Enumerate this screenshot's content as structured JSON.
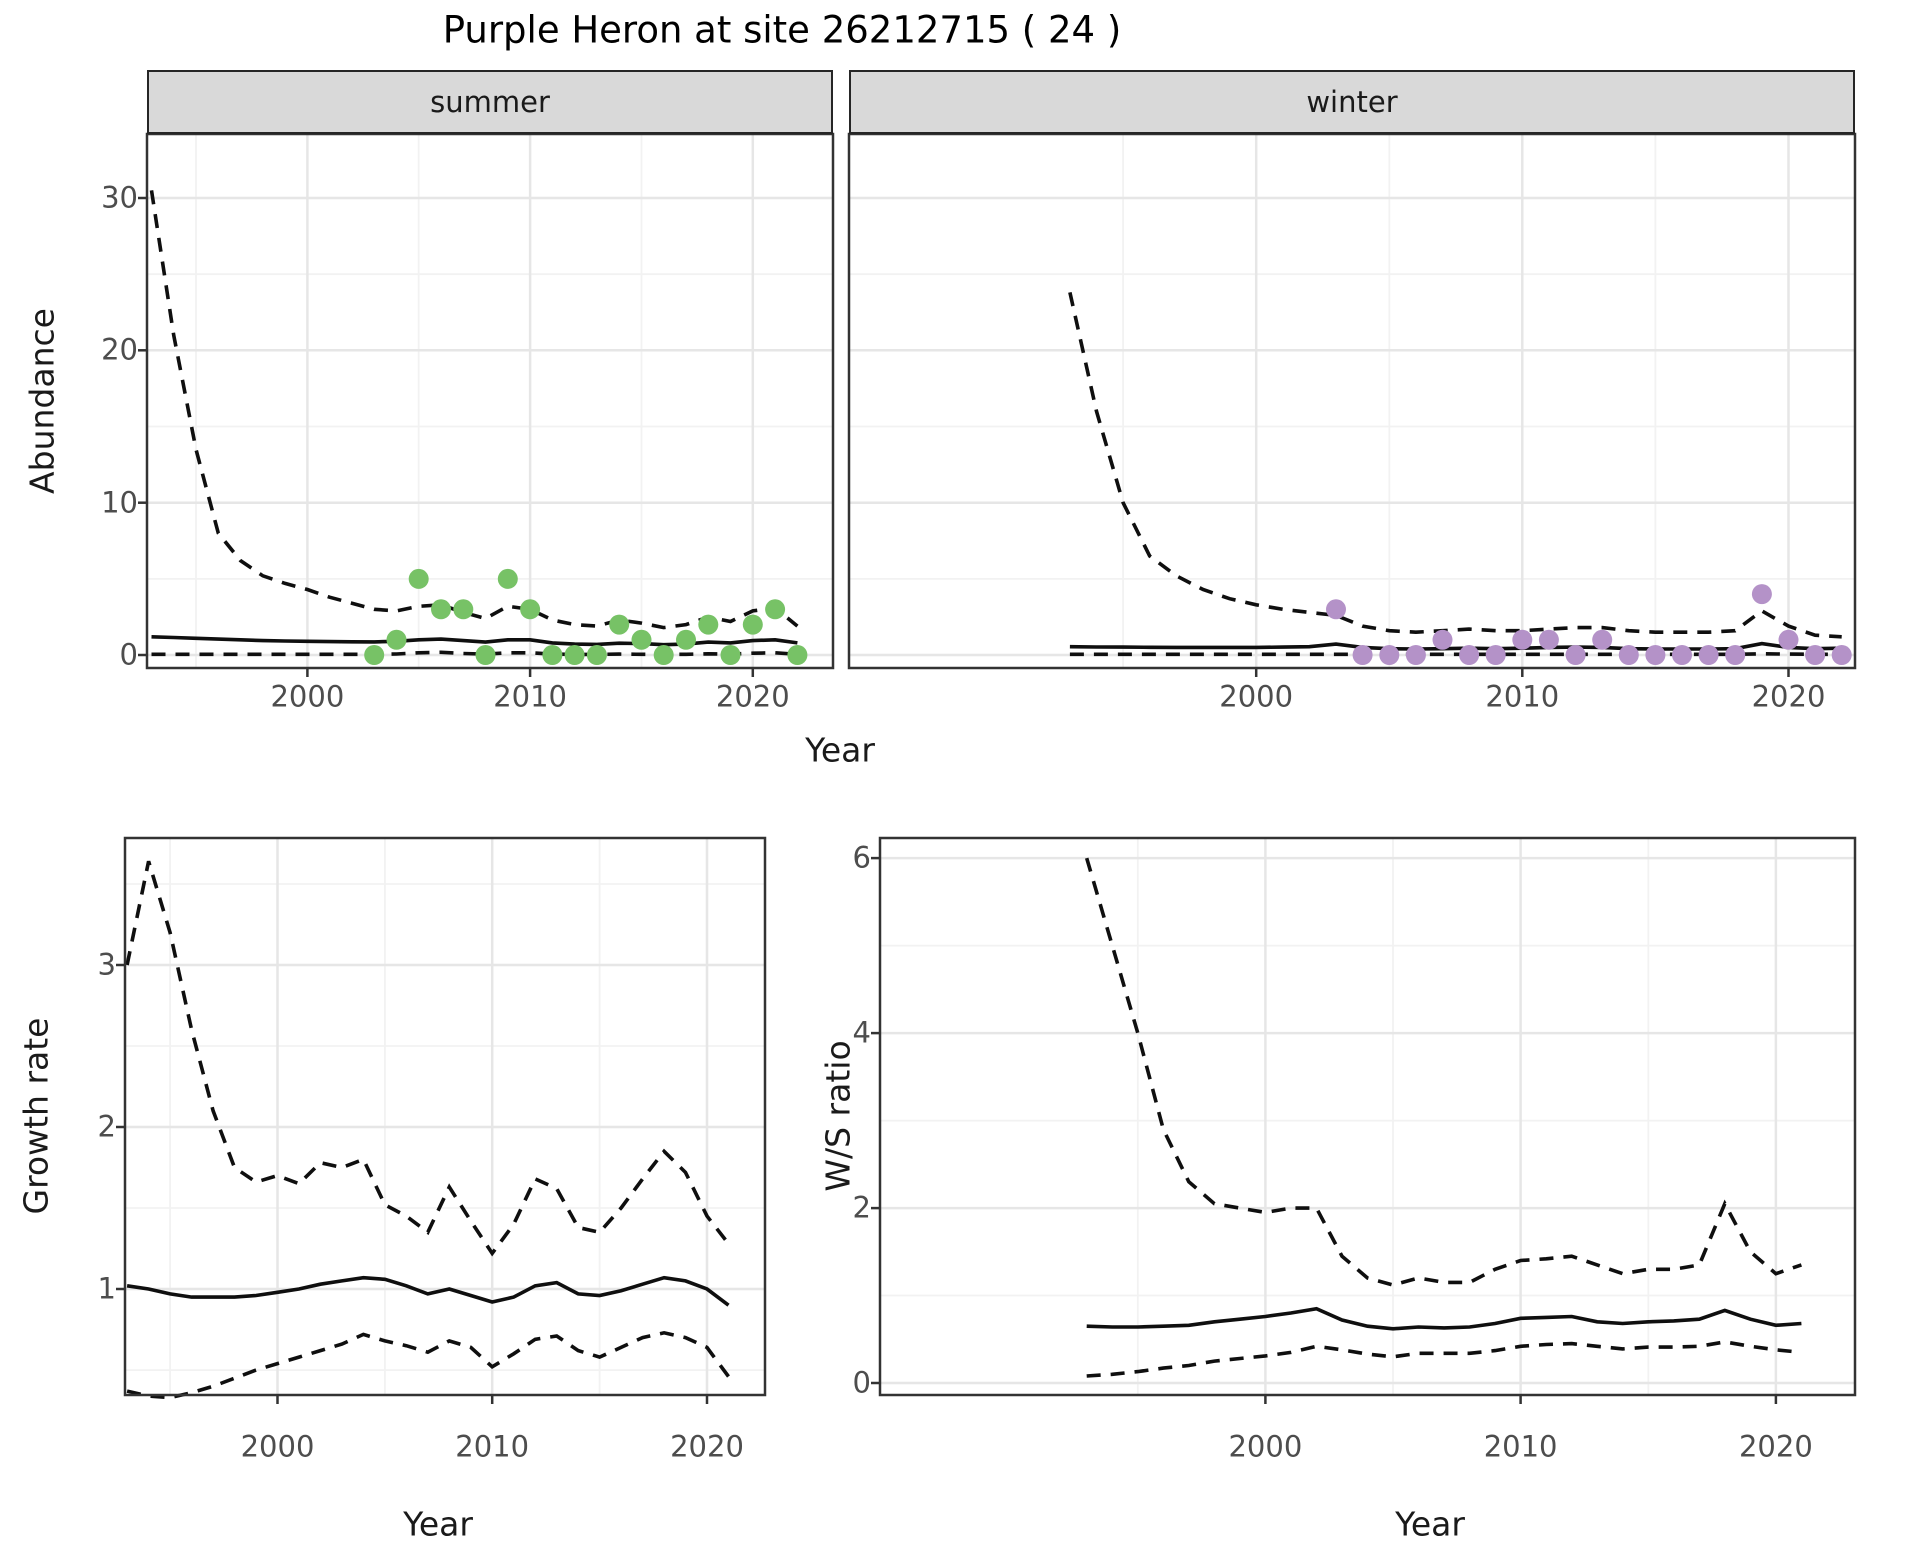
{
  "title": "Purple Heron at site 26212715 ( 24 )",
  "labels": {
    "abundance": "Abundance",
    "growth": "Growth rate",
    "ws": "W/S ratio",
    "year_top": "Year",
    "year_bottom_left": "Year",
    "year_bottom_right": "Year"
  },
  "facets": {
    "summer": "summer",
    "winter": "winter"
  },
  "colors": {
    "summer_point": "#77c266",
    "winter_point": "#b492c8",
    "line": "#0f0f0f",
    "grid_major": "#e6e6e6",
    "grid_minor": "#f2f2f2",
    "strip_bg": "#d9d9d9",
    "panel_border": "#333333",
    "tick_text": "#4d4d4d"
  },
  "chart_data": [
    {
      "type": "line",
      "panel": "abundance_summer",
      "facet_label": "summer",
      "title": "Purple Heron at site 26212715 ( 24 )",
      "xlabel": "Year",
      "ylabel": "Abundance",
      "x_ticks": [
        2000,
        2010,
        2020
      ],
      "y_ticks": [
        0,
        10,
        20,
        30
      ],
      "xlim": [
        1992.8,
        2023.6
      ],
      "ylim": [
        -0.85,
        34.2
      ],
      "grid": true,
      "legend": "none",
      "series": [
        {
          "name": "upper_95CI",
          "style": "dashed",
          "x": [
            1993,
            1994,
            1995,
            1996,
            1997,
            1998,
            1999,
            2000,
            2001,
            2002,
            2003,
            2004,
            2005,
            2006,
            2007,
            2008,
            2009,
            2010,
            2011,
            2012,
            2013,
            2014,
            2015,
            2016,
            2017,
            2018,
            2019,
            2020,
            2021,
            2022
          ],
          "y": [
            30.5,
            21,
            13.5,
            8,
            6.2,
            5.2,
            4.7,
            4.3,
            3.8,
            3.4,
            3.0,
            2.9,
            3.2,
            3.3,
            2.8,
            2.4,
            3.2,
            3.0,
            2.3,
            2.0,
            1.9,
            2.3,
            2.1,
            1.8,
            2.0,
            2.5,
            2.2,
            2.9,
            3.1,
            1.9
          ]
        },
        {
          "name": "mean",
          "style": "solid",
          "x": [
            1993,
            1994,
            1995,
            1996,
            1997,
            1998,
            1999,
            2000,
            2001,
            2002,
            2003,
            2004,
            2005,
            2006,
            2007,
            2008,
            2009,
            2010,
            2011,
            2012,
            2013,
            2014,
            2015,
            2016,
            2017,
            2018,
            2019,
            2020,
            2021,
            2022
          ],
          "y": [
            1.2,
            1.15,
            1.1,
            1.05,
            1.0,
            0.95,
            0.92,
            0.9,
            0.88,
            0.87,
            0.86,
            0.9,
            1.0,
            1.05,
            0.95,
            0.85,
            1.0,
            1.0,
            0.8,
            0.72,
            0.7,
            0.78,
            0.75,
            0.68,
            0.72,
            0.85,
            0.8,
            0.95,
            1.0,
            0.8
          ]
        },
        {
          "name": "lower_95CI",
          "style": "dashed",
          "x": [
            1993,
            1994,
            1995,
            1996,
            1997,
            1998,
            1999,
            2000,
            2001,
            2002,
            2003,
            2004,
            2005,
            2006,
            2007,
            2008,
            2009,
            2010,
            2011,
            2012,
            2013,
            2014,
            2015,
            2016,
            2017,
            2018,
            2019,
            2020,
            2021,
            2022
          ],
          "y": [
            0.05,
            0.05,
            0.05,
            0.05,
            0.05,
            0.05,
            0.05,
            0.05,
            0.05,
            0.05,
            0.05,
            0.07,
            0.15,
            0.18,
            0.1,
            0.06,
            0.15,
            0.15,
            0.06,
            0.04,
            0.04,
            0.06,
            0.05,
            0.04,
            0.05,
            0.08,
            0.06,
            0.12,
            0.15,
            0.05
          ]
        },
        {
          "name": "observed_counts",
          "style": "points",
          "color": "#77c266",
          "x": [
            2003,
            2004,
            2005,
            2006,
            2007,
            2008,
            2009,
            2010,
            2011,
            2012,
            2013,
            2014,
            2015,
            2016,
            2017,
            2018,
            2019,
            2020,
            2021,
            2022
          ],
          "y": [
            0,
            1,
            5,
            3,
            3,
            0,
            5,
            3,
            0,
            0,
            0,
            2,
            1,
            0,
            1,
            2,
            0,
            2,
            3,
            0
          ]
        }
      ]
    },
    {
      "type": "line",
      "panel": "abundance_winter",
      "facet_label": "winter",
      "xlabel": "Year",
      "ylabel": "Abundance",
      "x_ticks": [
        2000,
        2010,
        2020
      ],
      "y_ticks": [
        0,
        10,
        20,
        30
      ],
      "xlim": [
        1984.7,
        2022.5
      ],
      "ylim": [
        -0.85,
        34.2
      ],
      "grid": true,
      "legend": "none",
      "series": [
        {
          "name": "upper_95CI",
          "style": "dashed",
          "x": [
            1993,
            1994,
            1995,
            1996,
            1997,
            1998,
            1999,
            2000,
            2001,
            2002,
            2003,
            2004,
            2005,
            2006,
            2007,
            2008,
            2009,
            2010,
            2011,
            2012,
            2013,
            2014,
            2015,
            2016,
            2017,
            2018,
            2019,
            2020,
            2021,
            2022
          ],
          "y": [
            23.8,
            16,
            10,
            6.5,
            5.2,
            4.3,
            3.7,
            3.3,
            3.0,
            2.8,
            2.6,
            1.9,
            1.6,
            1.5,
            1.6,
            1.7,
            1.6,
            1.6,
            1.7,
            1.8,
            1.8,
            1.6,
            1.5,
            1.5,
            1.5,
            1.6,
            2.9,
            1.9,
            1.3,
            1.2
          ]
        },
        {
          "name": "mean",
          "style": "solid",
          "x": [
            1993,
            1994,
            1995,
            1996,
            1997,
            1998,
            1999,
            2000,
            2001,
            2002,
            2003,
            2004,
            2005,
            2006,
            2007,
            2008,
            2009,
            2010,
            2011,
            2012,
            2013,
            2014,
            2015,
            2016,
            2017,
            2018,
            2019,
            2020,
            2021,
            2022
          ],
          "y": [
            0.55,
            0.53,
            0.52,
            0.51,
            0.5,
            0.5,
            0.5,
            0.5,
            0.52,
            0.55,
            0.72,
            0.5,
            0.42,
            0.4,
            0.42,
            0.45,
            0.42,
            0.45,
            0.5,
            0.52,
            0.5,
            0.42,
            0.4,
            0.4,
            0.4,
            0.42,
            0.75,
            0.5,
            0.42,
            0.45
          ]
        },
        {
          "name": "lower_95CI",
          "style": "dashed",
          "x": [
            1993,
            1994,
            1995,
            1996,
            1997,
            1998,
            1999,
            2000,
            2001,
            2002,
            2003,
            2004,
            2005,
            2006,
            2007,
            2008,
            2009,
            2010,
            2011,
            2012,
            2013,
            2014,
            2015,
            2016,
            2017,
            2018,
            2019,
            2020,
            2021,
            2022
          ],
          "y": [
            0.05,
            0.05,
            0.05,
            0.05,
            0.05,
            0.05,
            0.05,
            0.05,
            0.05,
            0.05,
            0.05,
            0.05,
            0.05,
            0.05,
            0.05,
            0.05,
            0.05,
            0.05,
            0.05,
            0.05,
            0.05,
            0.05,
            0.05,
            0.05,
            0.05,
            0.05,
            0.08,
            0.06,
            0.05,
            0.05
          ]
        },
        {
          "name": "observed_counts",
          "style": "points",
          "color": "#b492c8",
          "x": [
            2003,
            2004,
            2005,
            2006,
            2007,
            2008,
            2009,
            2010,
            2011,
            2012,
            2013,
            2014,
            2015,
            2016,
            2017,
            2018,
            2019,
            2020,
            2021,
            2022
          ],
          "y": [
            3,
            0,
            0,
            0,
            1,
            0,
            0,
            1,
            1,
            0,
            1,
            0,
            0,
            0,
            0,
            0,
            4,
            1,
            0,
            0
          ]
        }
      ]
    },
    {
      "type": "line",
      "panel": "growth_rate",
      "xlabel": "Year",
      "ylabel": "Growth rate",
      "x_ticks": [
        2000,
        2010,
        2020
      ],
      "y_ticks": [
        1,
        2,
        3
      ],
      "xlim": [
        1992.9,
        2022.7
      ],
      "ylim": [
        0.346,
        3.784
      ],
      "grid": true,
      "legend": "none",
      "series": [
        {
          "name": "upper_95CI",
          "style": "dashed",
          "x": [
            1993,
            1994,
            1995,
            1996,
            1997,
            1998,
            1999,
            2000,
            2001,
            2002,
            2003,
            2004,
            2005,
            2006,
            2007,
            2008,
            2009,
            2010,
            2011,
            2012,
            2013,
            2014,
            2015,
            2016,
            2017,
            2018,
            2019,
            2020,
            2021
          ],
          "y": [
            3.0,
            3.64,
            3.2,
            2.6,
            2.1,
            1.75,
            1.66,
            1.7,
            1.65,
            1.78,
            1.75,
            1.8,
            1.52,
            1.45,
            1.35,
            1.63,
            1.42,
            1.22,
            1.4,
            1.68,
            1.62,
            1.38,
            1.35,
            1.5,
            1.68,
            1.85,
            1.72,
            1.45,
            1.28
          ]
        },
        {
          "name": "mean",
          "style": "solid",
          "x": [
            1993,
            1994,
            1995,
            1996,
            1997,
            1998,
            1999,
            2000,
            2001,
            2002,
            2003,
            2004,
            2005,
            2006,
            2007,
            2008,
            2009,
            2010,
            2011,
            2012,
            2013,
            2014,
            2015,
            2016,
            2017,
            2018,
            2019,
            2020,
            2021
          ],
          "y": [
            1.02,
            1.0,
            0.97,
            0.95,
            0.95,
            0.95,
            0.96,
            0.98,
            1.0,
            1.03,
            1.05,
            1.07,
            1.06,
            1.02,
            0.97,
            1.0,
            0.96,
            0.92,
            0.95,
            1.02,
            1.04,
            0.97,
            0.96,
            0.99,
            1.03,
            1.07,
            1.05,
            1.0,
            0.9
          ]
        },
        {
          "name": "lower_95CI",
          "style": "dashed",
          "x": [
            1993,
            1994,
            1995,
            1996,
            1997,
            1998,
            1999,
            2000,
            2001,
            2002,
            2003,
            2004,
            2005,
            2006,
            2007,
            2008,
            2009,
            2010,
            2011,
            2012,
            2013,
            2014,
            2015,
            2016,
            2017,
            2018,
            2019,
            2020,
            2021
          ],
          "y": [
            0.37,
            0.34,
            0.33,
            0.36,
            0.4,
            0.45,
            0.5,
            0.54,
            0.58,
            0.62,
            0.66,
            0.72,
            0.68,
            0.65,
            0.61,
            0.68,
            0.64,
            0.52,
            0.6,
            0.69,
            0.71,
            0.62,
            0.58,
            0.64,
            0.7,
            0.73,
            0.7,
            0.64,
            0.46
          ]
        }
      ]
    },
    {
      "type": "line",
      "panel": "ws_ratio",
      "xlabel": "Year",
      "ylabel": "W/S ratio",
      "x_ticks": [
        2000,
        2010,
        2020
      ],
      "y_ticks": [
        0,
        2,
        4,
        6
      ],
      "xlim": [
        1984.9,
        2023.1
      ],
      "ylim": [
        -0.137,
        6.23
      ],
      "grid": true,
      "legend": "none",
      "series": [
        {
          "name": "upper_95CI",
          "style": "dashed",
          "x": [
            1993,
            1994,
            1995,
            1996,
            1997,
            1998,
            1999,
            2000,
            2001,
            2002,
            2003,
            2004,
            2005,
            2006,
            2007,
            2008,
            2009,
            2010,
            2011,
            2012,
            2013,
            2014,
            2015,
            2016,
            2017,
            2018,
            2019,
            2020,
            2021
          ],
          "y": [
            6.0,
            5.0,
            4.0,
            2.9,
            2.3,
            2.05,
            2.0,
            1.95,
            2.0,
            2.0,
            1.45,
            1.2,
            1.12,
            1.2,
            1.15,
            1.15,
            1.3,
            1.4,
            1.42,
            1.45,
            1.35,
            1.25,
            1.3,
            1.3,
            1.35,
            2.05,
            1.5,
            1.25,
            1.35
          ]
        },
        {
          "name": "mean",
          "style": "solid",
          "x": [
            1993,
            1994,
            1995,
            1996,
            1997,
            1998,
            1999,
            2000,
            2001,
            2002,
            2003,
            2004,
            2005,
            2006,
            2007,
            2008,
            2009,
            2010,
            2011,
            2012,
            2013,
            2014,
            2015,
            2016,
            2017,
            2018,
            2019,
            2020,
            2021
          ],
          "y": [
            0.65,
            0.64,
            0.64,
            0.65,
            0.66,
            0.7,
            0.73,
            0.76,
            0.8,
            0.85,
            0.72,
            0.65,
            0.62,
            0.64,
            0.63,
            0.64,
            0.68,
            0.74,
            0.75,
            0.76,
            0.7,
            0.68,
            0.7,
            0.71,
            0.73,
            0.83,
            0.73,
            0.66,
            0.68
          ]
        },
        {
          "name": "lower_95CI",
          "style": "dashed",
          "x": [
            1993,
            1994,
            1995,
            1996,
            1997,
            1998,
            1999,
            2000,
            2001,
            2002,
            2003,
            2004,
            2005,
            2006,
            2007,
            2008,
            2009,
            2010,
            2011,
            2012,
            2013,
            2014,
            2015,
            2016,
            2017,
            2018,
            2019,
            2020,
            2021
          ],
          "y": [
            0.08,
            0.1,
            0.13,
            0.17,
            0.2,
            0.25,
            0.28,
            0.31,
            0.35,
            0.42,
            0.38,
            0.33,
            0.3,
            0.34,
            0.34,
            0.34,
            0.37,
            0.42,
            0.44,
            0.45,
            0.42,
            0.39,
            0.41,
            0.41,
            0.42,
            0.47,
            0.42,
            0.38,
            0.35
          ]
        }
      ]
    }
  ]
}
